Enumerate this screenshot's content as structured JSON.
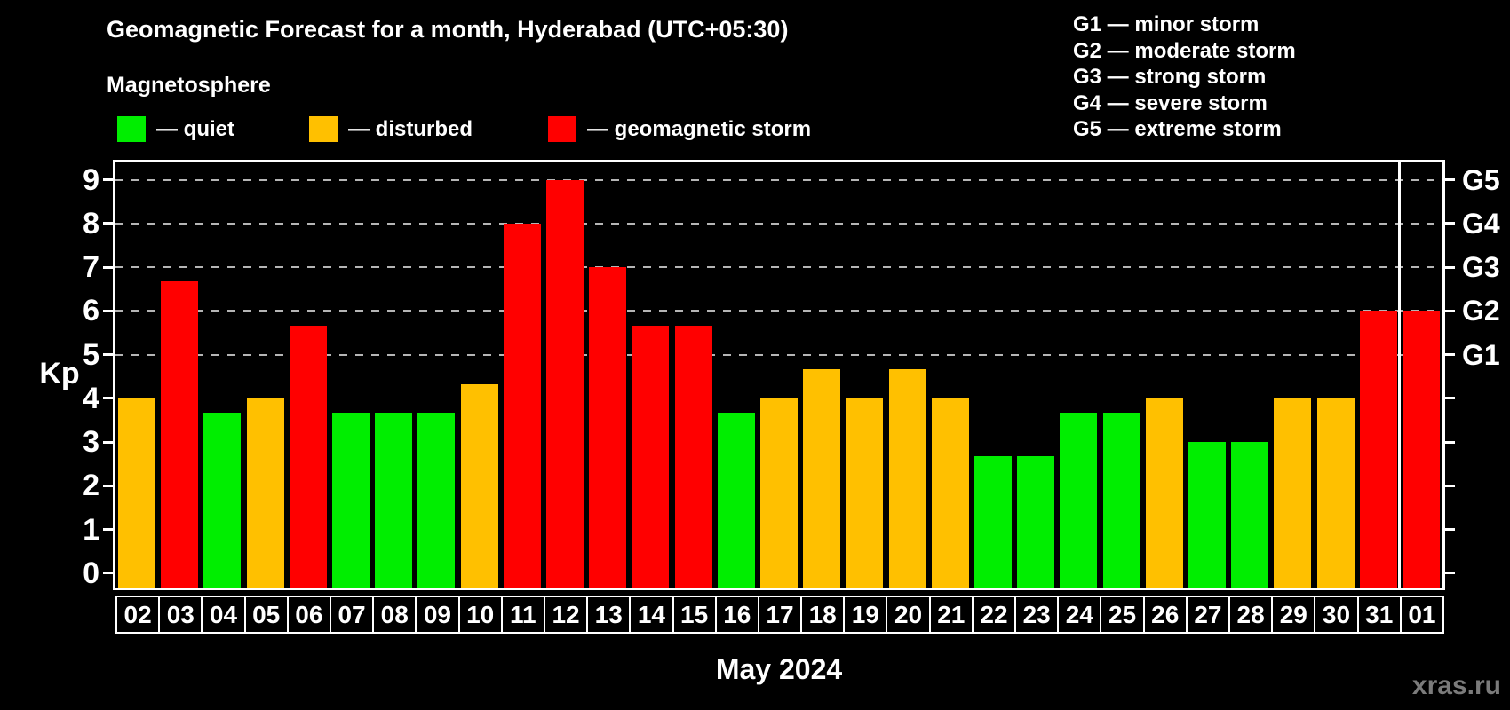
{
  "header": {
    "title": "Geomagnetic Forecast for a month, Hyderabad (UTC+05:30)",
    "subtitle": "Magnetosphere"
  },
  "legend": {
    "items": [
      {
        "name": "quiet",
        "label": "— quiet",
        "color": "#00ee00"
      },
      {
        "name": "disturbed",
        "label": "— disturbed",
        "color": "#ffc000"
      },
      {
        "name": "storm",
        "label": "— geomagnetic storm",
        "color": "#ff0000"
      }
    ]
  },
  "storm_scale_legend": {
    "items": [
      "G1 — minor storm",
      "G2 — moderate storm",
      "G3 — strong storm",
      "G4 — severe storm",
      "G5 — extreme storm"
    ]
  },
  "chart_data": {
    "type": "bar",
    "title": "Geomagnetic Forecast for a month, Hyderabad (UTC+05:30)",
    "xlabel": "May 2024",
    "ylabel": "Kp",
    "ylim": [
      0,
      9
    ],
    "yticks": [
      0,
      1,
      2,
      3,
      4,
      5,
      6,
      7,
      8,
      9
    ],
    "grid_levels": [
      5,
      6,
      7,
      8,
      9
    ],
    "grid_on": true,
    "legend_position": "top-left",
    "right_axis": [
      {
        "label": "G1",
        "kp": 5
      },
      {
        "label": "G2",
        "kp": 6
      },
      {
        "label": "G3",
        "kp": 7
      },
      {
        "label": "G4",
        "kp": 8
      },
      {
        "label": "G5",
        "kp": 9
      }
    ],
    "categories": [
      "02",
      "03",
      "04",
      "05",
      "06",
      "07",
      "08",
      "09",
      "10",
      "11",
      "12",
      "13",
      "14",
      "15",
      "16",
      "17",
      "18",
      "19",
      "20",
      "21",
      "22",
      "23",
      "24",
      "25",
      "26",
      "27",
      "28",
      "29",
      "30",
      "31",
      "01"
    ],
    "values": [
      4,
      6.67,
      3.67,
      4,
      5.67,
      3.67,
      3.67,
      3.67,
      4.33,
      8,
      9,
      7,
      5.67,
      5.67,
      3.67,
      4,
      4.67,
      4,
      4.67,
      4,
      2.67,
      2.67,
      3.67,
      3.67,
      4,
      3,
      3,
      4,
      4,
      6,
      6
    ],
    "statuses": [
      "disturbed",
      "storm",
      "quiet",
      "disturbed",
      "storm",
      "quiet",
      "quiet",
      "quiet",
      "disturbed",
      "storm",
      "storm",
      "storm",
      "storm",
      "storm",
      "quiet",
      "disturbed",
      "disturbed",
      "disturbed",
      "disturbed",
      "disturbed",
      "quiet",
      "quiet",
      "quiet",
      "quiet",
      "disturbed",
      "quiet",
      "quiet",
      "disturbed",
      "disturbed",
      "storm",
      "storm"
    ],
    "colors": {
      "quiet": "#00ee00",
      "disturbed": "#ffc000",
      "storm": "#ff0000"
    },
    "month_separator_after_index": 29
  },
  "footer": {
    "watermark": "xras.ru"
  }
}
